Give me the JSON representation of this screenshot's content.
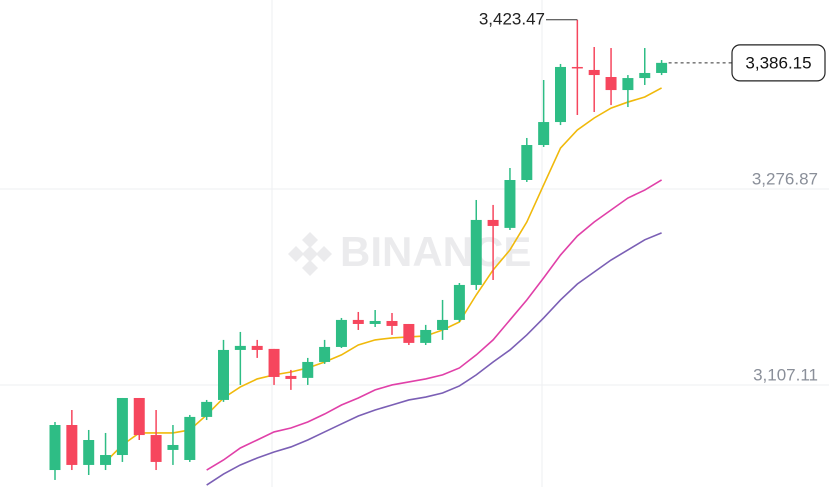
{
  "chart_data": {
    "type": "candlestick",
    "watermark": "BINANCE",
    "ylim": [
      3018.8,
      3440.6
    ],
    "yticks": [
      {
        "value": 3107.11,
        "label": "3,107.11"
      },
      {
        "value": 3276.87,
        "label": "3,276.87"
      }
    ],
    "grid": true,
    "up_color": "#2ebd85",
    "down_color": "#f6465d",
    "open": [
      3033.5,
      3072.5,
      3037.9,
      3037.9,
      3046.5,
      3095.9,
      3063.8,
      3050.9,
      3042.2,
      3079.5,
      3094.2,
      3137.5,
      3141.0,
      3138.4,
      3115.0,
      3113.3,
      3127.1,
      3140.1,
      3163.5,
      3160.0,
      3162.6,
      3160.0,
      3143.6,
      3154.8,
      3163.5,
      3193.8,
      3250.1,
      3243.2,
      3284.7,
      3315.0,
      3334.9,
      3382.6,
      3380.0,
      3373.9,
      3362.6,
      3373.0,
      3377.4
    ],
    "high": [
      3075.1,
      3085.5,
      3068.2,
      3065.6,
      3095.9,
      3095.9,
      3085.5,
      3072.5,
      3081.2,
      3094.2,
      3146.2,
      3153.1,
      3146.2,
      3138.4,
      3120.2,
      3130.6,
      3146.2,
      3165.2,
      3170.4,
      3172.1,
      3169.5,
      3160.0,
      3159.2,
      3180.8,
      3195.5,
      3267.4,
      3263.1,
      3295.1,
      3321.1,
      3371.3,
      3385.2,
      3423.47,
      3399.9,
      3399.0,
      3375.6,
      3399.0,
      3388.6
    ],
    "low": [
      3024.9,
      3033.5,
      3029.2,
      3033.5,
      3040.5,
      3059.5,
      3033.5,
      3037.9,
      3040.5,
      3076.8,
      3092.5,
      3107.2,
      3130.6,
      3107.2,
      3102.9,
      3107.2,
      3125.4,
      3139.2,
      3154.8,
      3157.4,
      3150.5,
      3141.8,
      3141.8,
      3146.2,
      3161.7,
      3189.5,
      3198.1,
      3241.4,
      3283.0,
      3313.3,
      3332.3,
      3341.0,
      3343.6,
      3349.6,
      3347.9,
      3367.0,
      3375.6
    ],
    "close": [
      3072.5,
      3037.9,
      3059.5,
      3046.5,
      3095.9,
      3063.8,
      3040.5,
      3055.2,
      3079.5,
      3092.5,
      3137.5,
      3141.0,
      3137.5,
      3114.1,
      3112.4,
      3127.1,
      3140.1,
      3163.5,
      3160.0,
      3162.6,
      3158.3,
      3143.6,
      3154.8,
      3163.5,
      3193.8,
      3250.1,
      3244.9,
      3284.7,
      3315.0,
      3334.9,
      3382.6,
      3381.7,
      3375.6,
      3362.6,
      3373.0,
      3377.4,
      3386.15
    ],
    "ma_lines": [
      {
        "color": "#f0b90b",
        "values": [
          null,
          null,
          null,
          3040.5,
          3055.2,
          3065.6,
          3065.6,
          3065.6,
          3068.2,
          3081.2,
          3095.9,
          3105.5,
          3112.4,
          3115.9,
          3118.4,
          3121.9,
          3127.1,
          3133.2,
          3141.8,
          3146.2,
          3147.9,
          3148.8,
          3149.6,
          3154.8,
          3161.7,
          3185.2,
          3206.8,
          3224.1,
          3248.3,
          3280.4,
          3312.4,
          3328.0,
          3338.4,
          3347.0,
          3352.2,
          3356.6,
          3364.4
        ]
      },
      {
        "color": "#e040a8",
        "values": [
          null,
          null,
          null,
          null,
          null,
          null,
          null,
          null,
          null,
          3033.5,
          3042.2,
          3052.6,
          3059.5,
          3066.5,
          3069.9,
          3075.1,
          3082.0,
          3089.8,
          3095.9,
          3102.9,
          3107.2,
          3109.8,
          3112.4,
          3115.9,
          3121.9,
          3133.2,
          3146.2,
          3163.5,
          3180.8,
          3199.9,
          3219.7,
          3236.2,
          3248.3,
          3258.7,
          3269.1,
          3276.0,
          3284.7
        ]
      },
      {
        "color": "#7b5fb5",
        "values": [
          null,
          null,
          null,
          null,
          null,
          null,
          null,
          null,
          null,
          3020.5,
          3030.0,
          3037.9,
          3043.9,
          3049.1,
          3053.5,
          3059.5,
          3066.5,
          3073.4,
          3080.3,
          3085.5,
          3089.8,
          3094.2,
          3096.7,
          3100.2,
          3106.3,
          3115.9,
          3127.1,
          3137.5,
          3150.5,
          3165.2,
          3180.8,
          3194.6,
          3205.0,
          3215.4,
          3224.1,
          3232.9,
          3238.9
        ]
      }
    ],
    "high_annotation": {
      "value": 3423.47,
      "label": "3,423.47"
    },
    "last_price": {
      "value": 3386.15,
      "label": "3,386.15"
    }
  }
}
